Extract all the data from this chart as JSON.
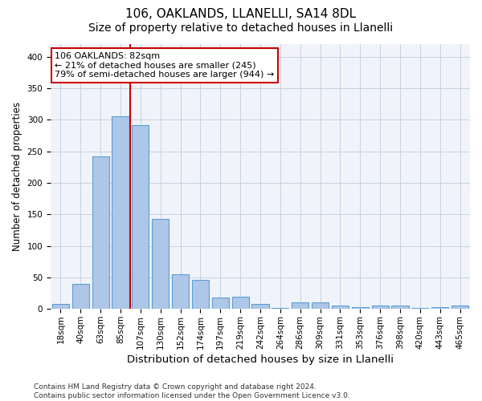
{
  "title_line1": "106, OAKLANDS, LLANELLI, SA14 8DL",
  "title_line2": "Size of property relative to detached houses in Llanelli",
  "xlabel": "Distribution of detached houses by size in Llanelli",
  "ylabel": "Number of detached properties",
  "categories": [
    "18sqm",
    "40sqm",
    "63sqm",
    "85sqm",
    "107sqm",
    "130sqm",
    "152sqm",
    "174sqm",
    "197sqm",
    "219sqm",
    "242sqm",
    "264sqm",
    "286sqm",
    "309sqm",
    "331sqm",
    "353sqm",
    "376sqm",
    "398sqm",
    "420sqm",
    "443sqm",
    "465sqm"
  ],
  "values": [
    8,
    40,
    242,
    305,
    291,
    143,
    55,
    46,
    18,
    20,
    8,
    2,
    11,
    11,
    5,
    3,
    5,
    5,
    2,
    3,
    5
  ],
  "bar_color": "#aec6e8",
  "bar_edge_color": "#5a9fd4",
  "vline_x": 3.5,
  "vline_color": "#cc0000",
  "annotation_line1": "106 OAKLANDS: 82sqm",
  "annotation_line2": "← 21% of detached houses are smaller (245)",
  "annotation_line3": "79% of semi-detached houses are larger (944) →",
  "annotation_box_color": "#ffffff",
  "annotation_box_edge_color": "#cc0000",
  "ylim": [
    0,
    420
  ],
  "yticks": [
    0,
    50,
    100,
    150,
    200,
    250,
    300,
    350,
    400
  ],
  "bg_color": "#f0f4fa",
  "grid_color": "#c8d0e0",
  "footnote": "Contains HM Land Registry data © Crown copyright and database right 2024.\nContains public sector information licensed under the Open Government Licence v3.0.",
  "title_fontsize": 11,
  "subtitle_fontsize": 10,
  "tick_fontsize": 7.5,
  "ylabel_fontsize": 8.5,
  "xlabel_fontsize": 9.5,
  "annotation_fontsize": 8,
  "footnote_fontsize": 6.5
}
